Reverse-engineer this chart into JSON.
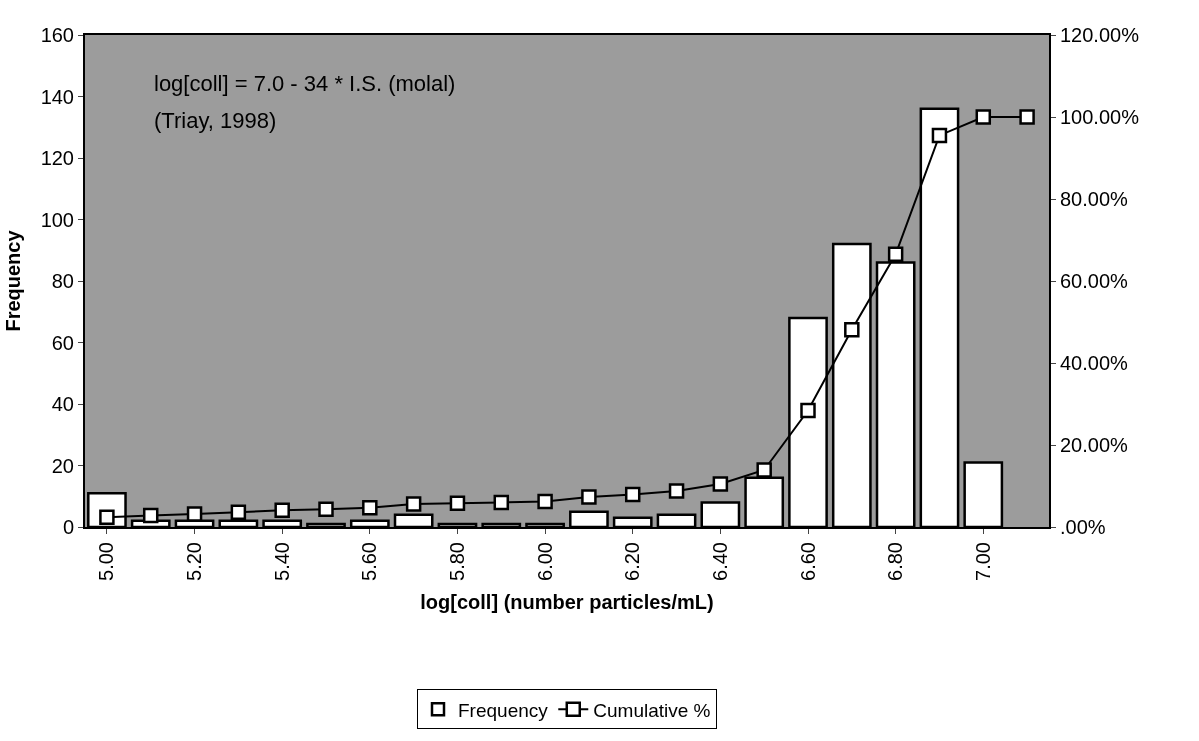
{
  "chart_data": {
    "type": "bar",
    "xlabel": "log[coll] (number particles/mL)",
    "ylabel": "Frequency",
    "categories": [
      "5.00",
      null,
      "5.20",
      null,
      "5.40",
      null,
      "5.60",
      null,
      "5.80",
      null,
      "6.00",
      null,
      "6.20",
      null,
      "6.40",
      null,
      "6.60",
      null,
      "6.80",
      null,
      "7.00",
      null
    ],
    "series": [
      {
        "name": "Frequency",
        "color": "#ffffff",
        "values": [
          11,
          2,
          2,
          2,
          2,
          1,
          2,
          4,
          1,
          1,
          1,
          5,
          3,
          4,
          8,
          16,
          68,
          92,
          86,
          136,
          21,
          0
        ]
      },
      {
        "name": "Cumulative %",
        "type": "line",
        "axis": "y2",
        "color": "#000000",
        "marker": "square",
        "values": [
          2.4,
          2.8,
          3.2,
          3.6,
          4.1,
          4.3,
          4.7,
          5.6,
          5.8,
          6.0,
          6.2,
          7.3,
          7.9,
          8.8,
          10.5,
          13.9,
          28.4,
          48.1,
          66.5,
          95.5,
          100,
          100
        ]
      }
    ],
    "ylim": [
      0,
      160
    ],
    "yticks": [
      0,
      20,
      40,
      60,
      80,
      100,
      120,
      140,
      160
    ],
    "y2lim": [
      0,
      120
    ],
    "y2ticks": [
      {
        "value": 0,
        "label": ".00%"
      },
      {
        "value": 20,
        "label": "20.00%"
      },
      {
        "value": 40,
        "label": "40.00%"
      },
      {
        "value": 60,
        "label": "60.00%"
      },
      {
        "value": 80,
        "label": "80.00%"
      },
      {
        "value": 100,
        "label": "100.00%"
      },
      {
        "value": 120,
        "label": "120.00%"
      }
    ],
    "annotations": [
      "log[coll] = 7.0 - 34 * I.S. (molal)",
      "(Triay, 1998)"
    ],
    "grid": false,
    "legend": "bottom"
  }
}
